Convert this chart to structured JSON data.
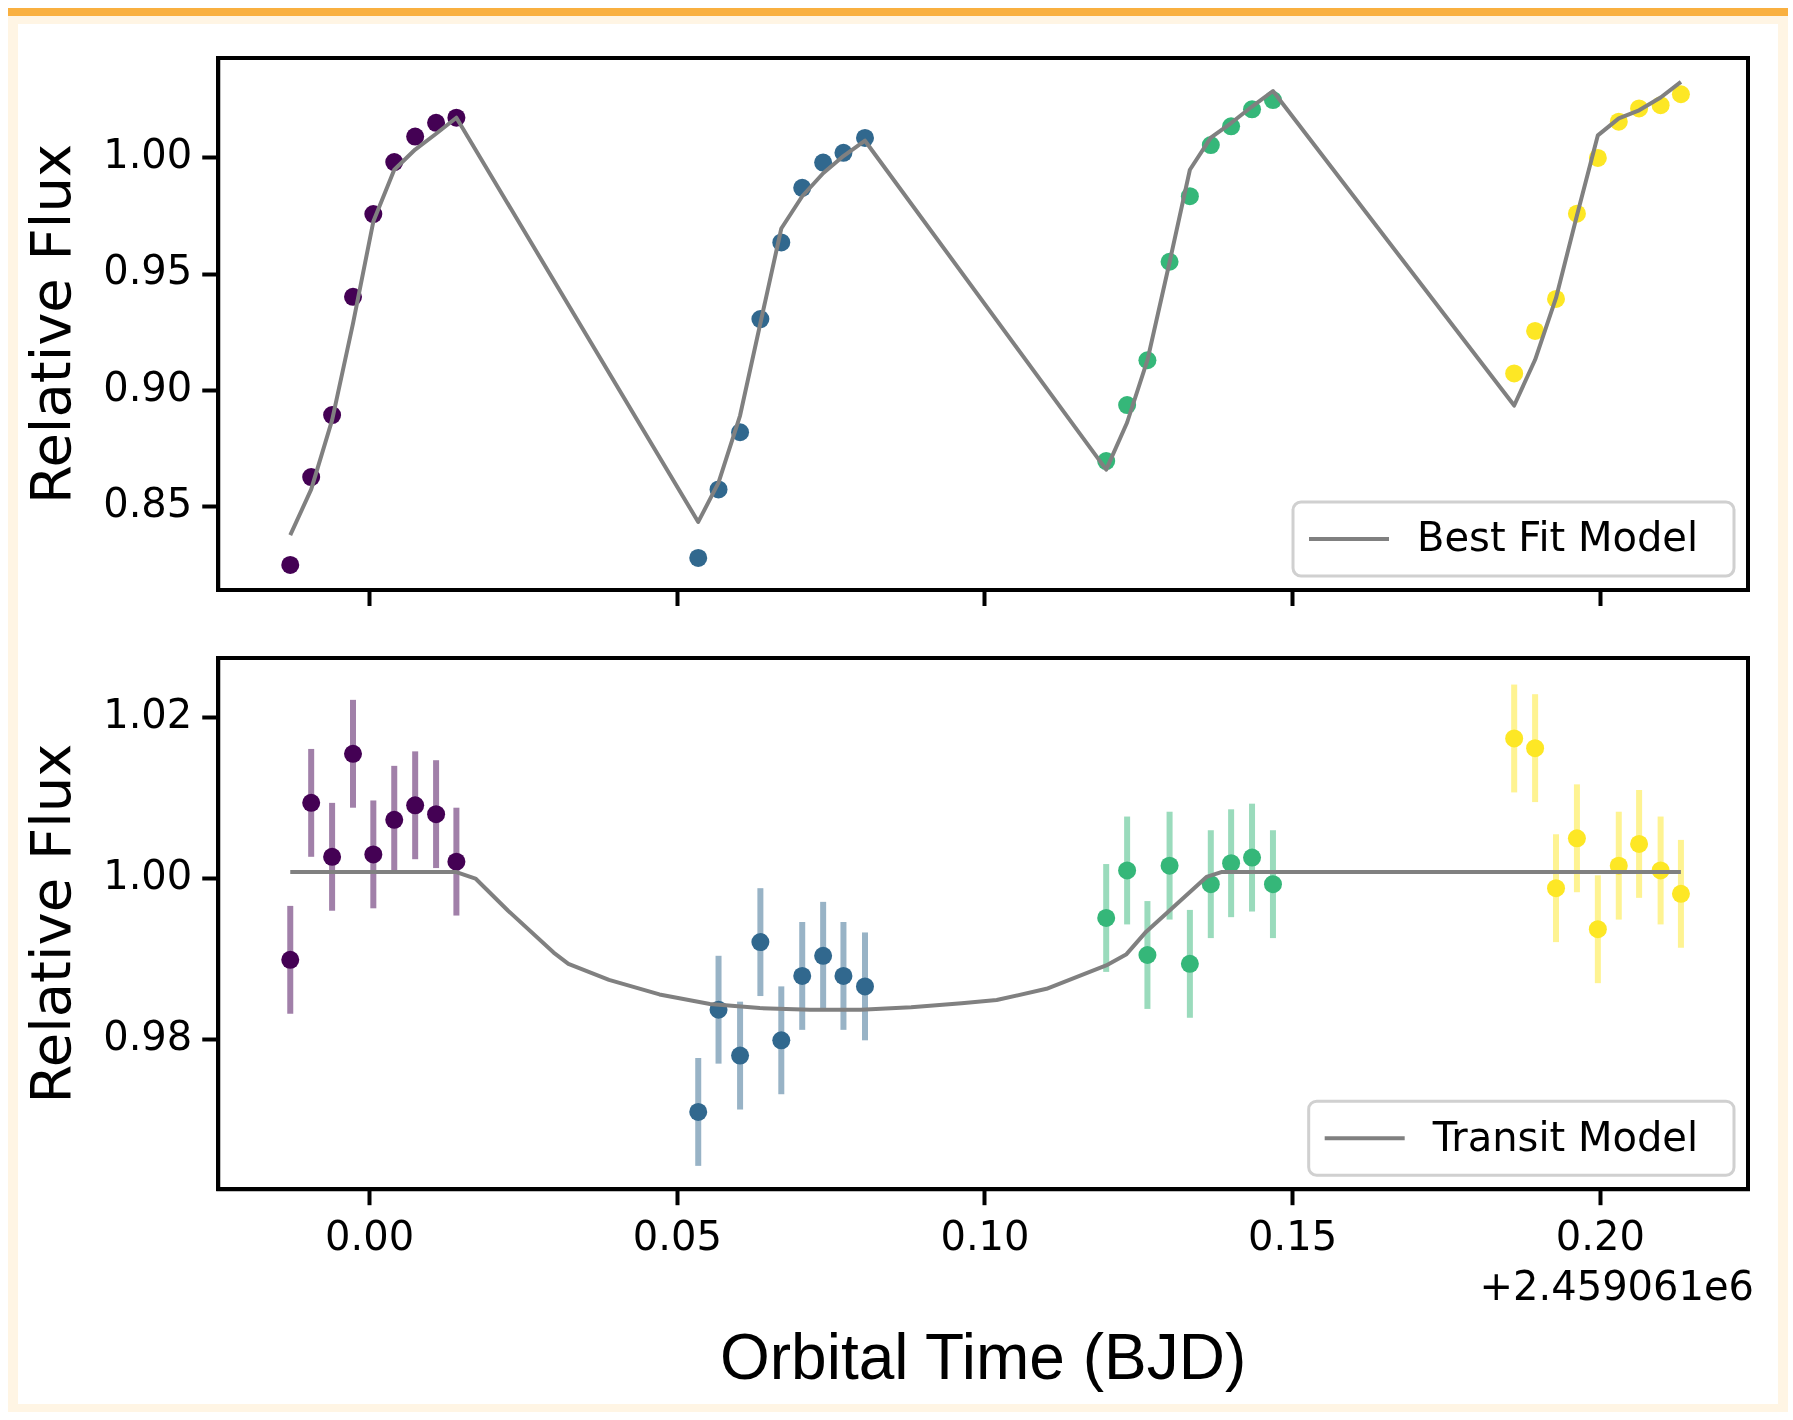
{
  "chart_data": [
    {
      "type": "scatter",
      "ylabel": "Relative Flux",
      "xlim": [
        -0.0246,
        0.224
      ],
      "ylim": [
        0.814,
        1.043
      ],
      "xticks": [
        {
          "value": 0,
          "label": null
        },
        {
          "value": 0.05,
          "label": null
        },
        {
          "value": 0.1,
          "label": null
        },
        {
          "value": 0.15,
          "label": null
        },
        {
          "value": 0.2,
          "label": null
        }
      ],
      "yticks": [
        {
          "value": 0.85,
          "label": "0.85"
        },
        {
          "value": 0.9,
          "label": "0.90"
        },
        {
          "value": 0.95,
          "label": "0.95"
        },
        {
          "value": 1,
          "label": "1.00"
        }
      ],
      "tick_labels": "y",
      "legend": "bottom right",
      "series": [
        {
          "marker": "circle",
          "color": "#440154",
          "x": [
            -0.0129,
            -0.0095,
            -0.0061,
            -0.0027,
            0.0006,
            0.004,
            0.0074,
            0.0108,
            0.0141
          ],
          "values": [
            0.8248,
            0.8626,
            0.8893,
            0.9402,
            0.9758,
            0.9982,
            1.0092,
            1.0151,
            1.0173
          ]
        },
        {
          "marker": "circle",
          "color": "#31688e",
          "x": [
            0.0534,
            0.0567,
            0.0602,
            0.0635,
            0.0669,
            0.0703,
            0.0737,
            0.077,
            0.0805
          ],
          "values": [
            0.8278,
            0.8573,
            0.8819,
            0.9306,
            0.9636,
            0.9871,
            0.998,
            1.0022,
            1.0086
          ]
        },
        {
          "marker": "circle",
          "color": "#35b779",
          "x": [
            0.1197,
            0.1231,
            0.1264,
            0.13,
            0.1333,
            0.1367,
            0.14,
            0.1434,
            0.1468
          ],
          "values": [
            0.8695,
            0.8936,
            0.9129,
            0.9553,
            0.9835,
            1.0055,
            1.0136,
            1.0209,
            1.0249
          ]
        },
        {
          "marker": "circle",
          "color": "#fde725",
          "x": [
            0.186,
            0.1894,
            0.1928,
            0.1962,
            0.1996,
            0.203,
            0.2063,
            0.2098,
            0.2131
          ],
          "values": [
            0.9072,
            0.9255,
            0.9393,
            0.976,
            1.0,
            1.0156,
            1.0213,
            1.0227,
            1.0274
          ]
        },
        {
          "type": "line",
          "name": "Best Fit Model",
          "color": "#808080",
          "x": [
            -0.0129,
            -0.0095,
            -0.0061,
            -0.0027,
            0.0006,
            0.004,
            0.0074,
            0.0108,
            0.0141,
            0.0534,
            0.0567,
            0.0602,
            0.0635,
            0.0669,
            0.0703,
            0.0737,
            0.077,
            0.0805,
            0.1197,
            0.1231,
            0.1264,
            0.13,
            0.1333,
            0.1367,
            0.14,
            0.1434,
            0.1468,
            0.186,
            0.1894,
            0.1928,
            0.1962,
            0.1996,
            0.203,
            0.2063,
            0.2098,
            0.2131
          ],
          "values": [
            0.8376,
            0.8573,
            0.8871,
            0.9288,
            0.9726,
            0.9949,
            1.0036,
            1.0104,
            1.0173,
            0.8433,
            0.8602,
            0.8891,
            0.9288,
            0.9696,
            0.9835,
            0.9934,
            1.0008,
            1.0074,
            0.8658,
            0.8861,
            0.9129,
            0.9551,
            0.9949,
            1.0087,
            1.015,
            1.0221,
            1.0288,
            0.8934,
            0.9131,
            0.9397,
            0.9752,
            1.0097,
            1.017,
            1.0205,
            1.026,
            1.0327
          ]
        }
      ]
    },
    {
      "type": "scatter",
      "ylabel": "Relative Flux",
      "xlabel": "Orbital Time (BJD)",
      "annotations": [
        "+2.459061e6"
      ],
      "xlim": [
        -0.0246,
        0.224
      ],
      "ylim": [
        0.9614,
        1.0274
      ],
      "xticks": [
        {
          "value": 0,
          "label": "0.00"
        },
        {
          "value": 0.05,
          "label": "0.05"
        },
        {
          "value": 0.1,
          "label": "0.10"
        },
        {
          "value": 0.15,
          "label": "0.15"
        },
        {
          "value": 0.2,
          "label": "0.20"
        }
      ],
      "yticks": [
        {
          "value": 0.98,
          "label": "0.98"
        },
        {
          "value": 1,
          "label": "1.00"
        },
        {
          "value": 1.02,
          "label": "1.02"
        }
      ],
      "legend": "bottom right",
      "series": [
        {
          "marker": "circle",
          "color": "#440154",
          "x": [
            -0.0129,
            -0.0095,
            -0.0061,
            -0.0027,
            0.0006,
            0.004,
            0.0074,
            0.0108,
            0.0141
          ],
          "values": [
            0.9899,
            1.0094,
            1.0027,
            1.0155,
            1.003,
            1.0073,
            1.0091,
            1.008,
            1.0021
          ],
          "errors": [
            0.0067,
            0.0067,
            0.0067,
            0.0067,
            0.0067,
            0.0067,
            0.0067,
            0.0067,
            0.0067
          ]
        },
        {
          "marker": "circle",
          "color": "#31688e",
          "x": [
            0.0534,
            0.0567,
            0.0602,
            0.0635,
            0.0669,
            0.0703,
            0.0737,
            0.077,
            0.0805
          ],
          "values": [
            0.971,
            0.9837,
            0.978,
            0.9921,
            0.9799,
            0.9879,
            0.9904,
            0.9879,
            0.9866
          ],
          "errors": [
            0.0067,
            0.0067,
            0.0067,
            0.0067,
            0.0067,
            0.0067,
            0.0067,
            0.0067,
            0.0067
          ]
        },
        {
          "marker": "circle",
          "color": "#35b779",
          "x": [
            0.1197,
            0.1231,
            0.1264,
            0.13,
            0.1333,
            0.1367,
            0.14,
            0.1434,
            0.1468
          ],
          "values": [
            0.9951,
            1.001,
            0.9905,
            1.0016,
            0.9894,
            0.9993,
            1.0019,
            1.0026,
            0.9993
          ],
          "errors": [
            0.0067,
            0.0067,
            0.0067,
            0.0067,
            0.0067,
            0.0067,
            0.0067,
            0.0067,
            0.0067
          ]
        },
        {
          "marker": "circle",
          "color": "#fde725",
          "x": [
            0.186,
            0.1894,
            0.1928,
            0.1962,
            0.1996,
            0.203,
            0.2063,
            0.2098,
            0.2131
          ],
          "values": [
            1.0174,
            1.0162,
            0.9988,
            1.005,
            0.9937,
            1.0016,
            1.0043,
            1.001,
            0.9981
          ],
          "errors": [
            0.0067,
            0.0067,
            0.0067,
            0.0067,
            0.0067,
            0.0067,
            0.0067,
            0.0067,
            0.0067
          ]
        },
        {
          "type": "line",
          "name": "Transit Model",
          "color": "#808080",
          "x": [
            -0.0129,
            0.0141,
            0.0172,
            0.0225,
            0.0299,
            0.0323,
            0.0389,
            0.0471,
            0.0553,
            0.0634,
            0.0716,
            0.0798,
            0.088,
            0.0962,
            0.1019,
            0.11,
            0.1197,
            0.123,
            0.1262,
            0.136,
            0.1384,
            0.2131
          ],
          "values": [
            1.0008,
            1.0008,
            1.0,
            0.996,
            0.9908,
            0.9894,
            0.9874,
            0.9856,
            0.9844,
            0.9839,
            0.9837,
            0.9837,
            0.984,
            0.9845,
            0.9849,
            0.9863,
            0.9892,
            0.9906,
            0.9934,
            1.0002,
            1.0008,
            1.0008
          ]
        }
      ]
    }
  ]
}
